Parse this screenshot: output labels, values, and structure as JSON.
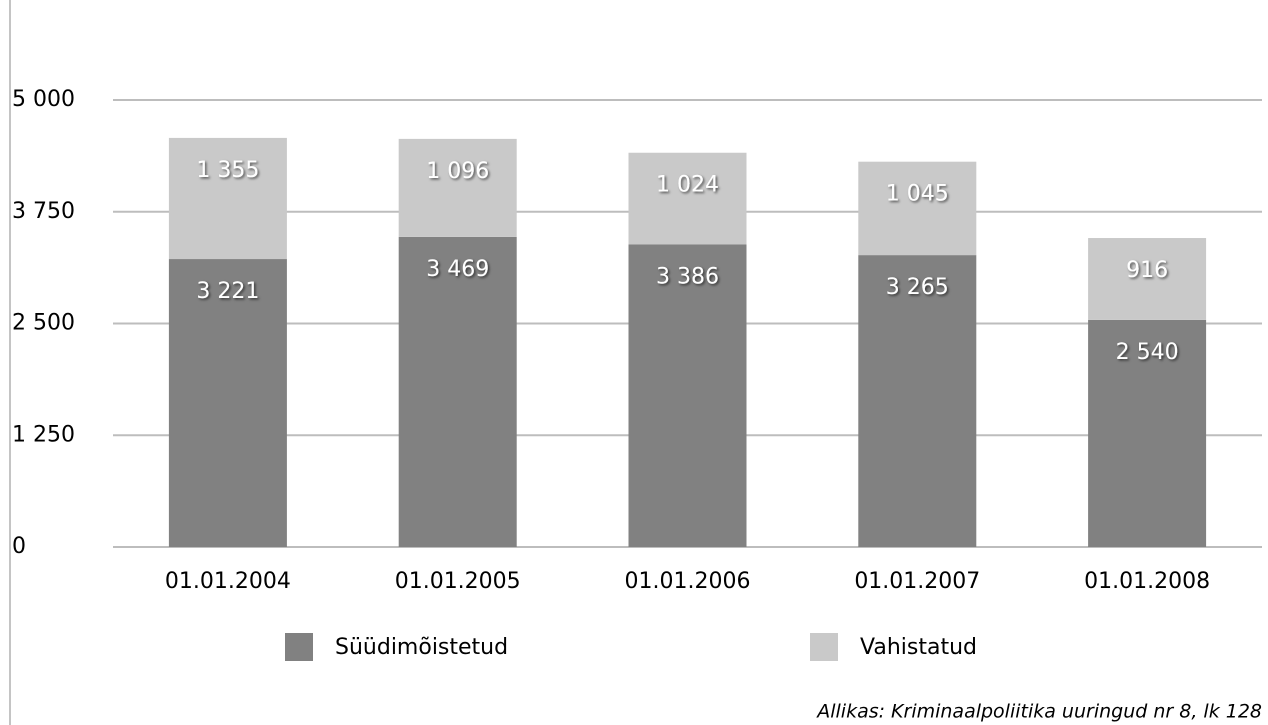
{
  "chart_data": {
    "type": "bar",
    "stacked": true,
    "categories": [
      "01.01.2004",
      "01.01.2005",
      "01.01.2006",
      "01.01.2007",
      "01.01.2008"
    ],
    "series": [
      {
        "name": "Süüdimõistetud",
        "color": "#818181",
        "values": [
          3221,
          3469,
          3386,
          3265,
          2540
        ],
        "value_labels": [
          "3 221",
          "3 469",
          "3 386",
          "3 265",
          "2 540"
        ]
      },
      {
        "name": "Vahistatud",
        "color": "#c9c9c9",
        "values": [
          1355,
          1096,
          1024,
          1045,
          916
        ],
        "value_labels": [
          "1 355",
          "1 096",
          "1 024",
          "1 045",
          "916"
        ]
      }
    ],
    "ylim": [
      0,
      5000
    ],
    "yticks": [
      0,
      {
        "value": 1250,
        "label": "1 250"
      },
      {
        "value": 2500,
        "label": "2 500"
      },
      {
        "value": 3750,
        "label": "3 750"
      },
      {
        "value": 5000,
        "label": "5 000"
      }
    ],
    "grid": true,
    "legend": "bottom",
    "source": "Allikas: Kriminaalpoliitika uuringud nr 8, lk 128"
  }
}
